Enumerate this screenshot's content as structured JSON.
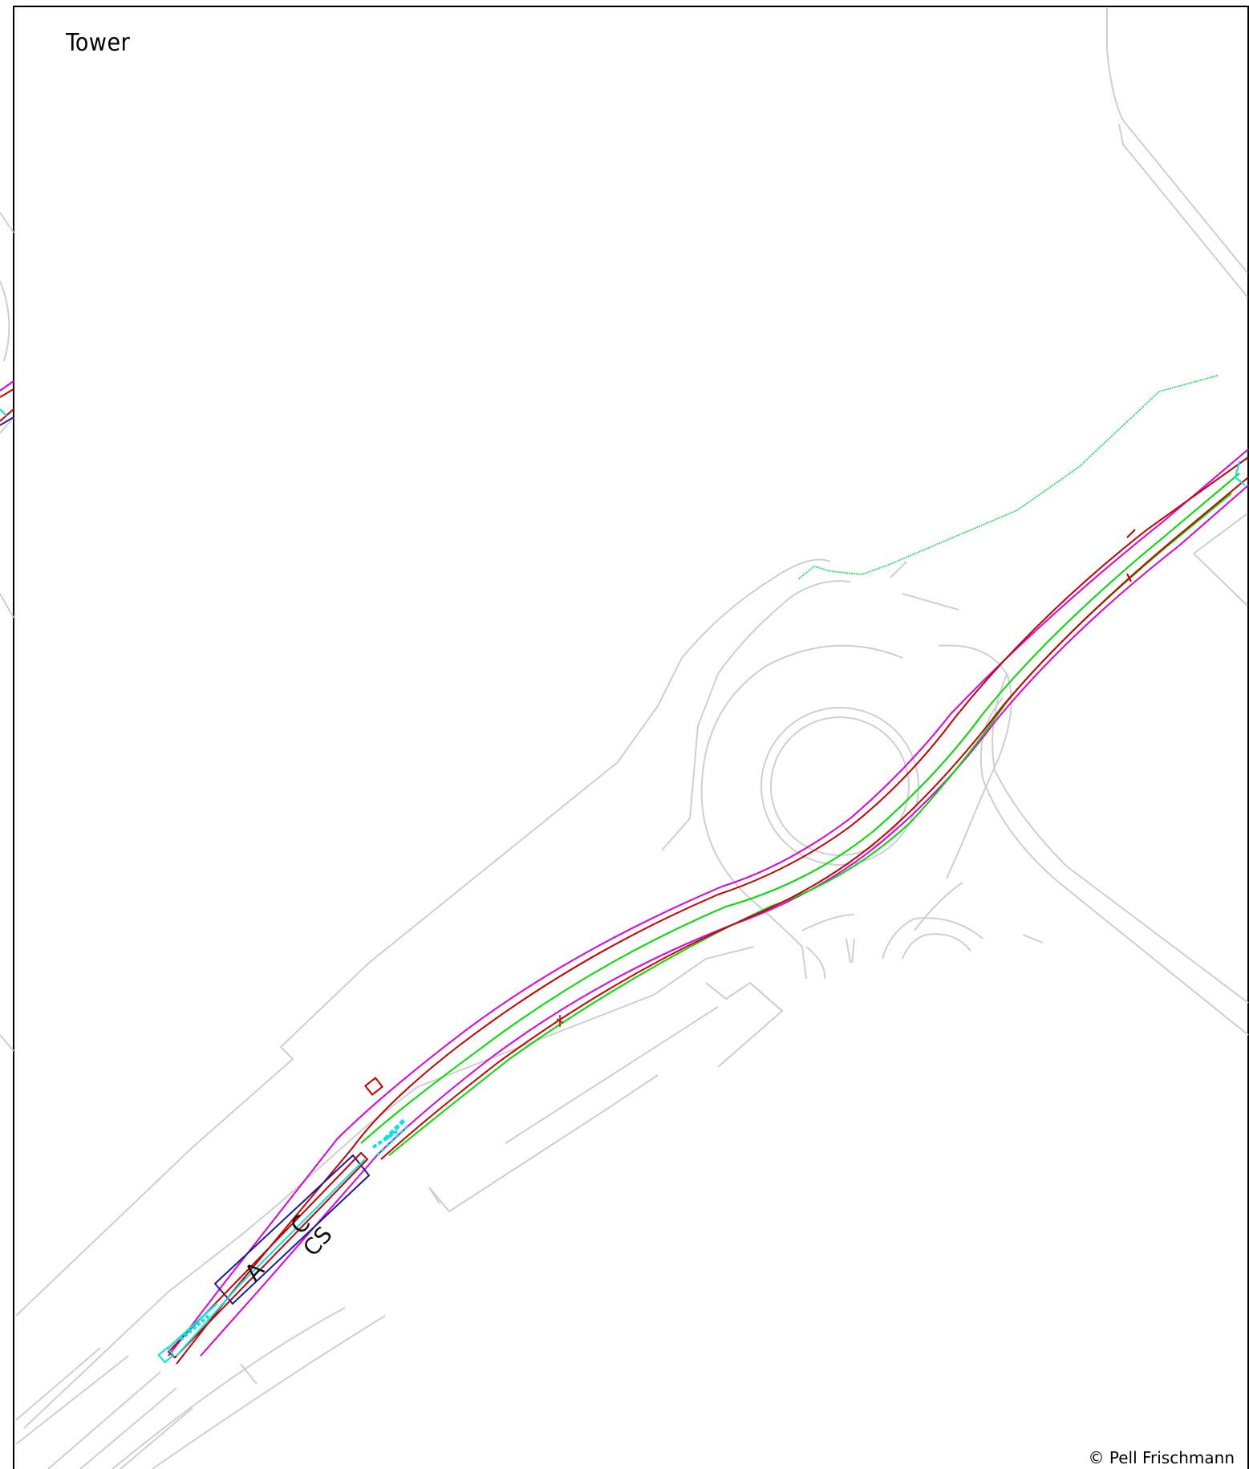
{
  "drawing": {
    "title": "Tower",
    "copyright": "© Pell Frischmann",
    "annotations": [
      "C",
      "CS",
      "A"
    ],
    "line_colors": {
      "frame": "#000000",
      "context": "#cfcfcf",
      "boundary": "#00ff00",
      "alignment_green": "#00dd00",
      "alignment_red": "#cc0000",
      "alignment_magenta": "#e000e0",
      "alignment_blue": "#1a1aa8",
      "alignment_cyan": "#00e5e5"
    }
  }
}
